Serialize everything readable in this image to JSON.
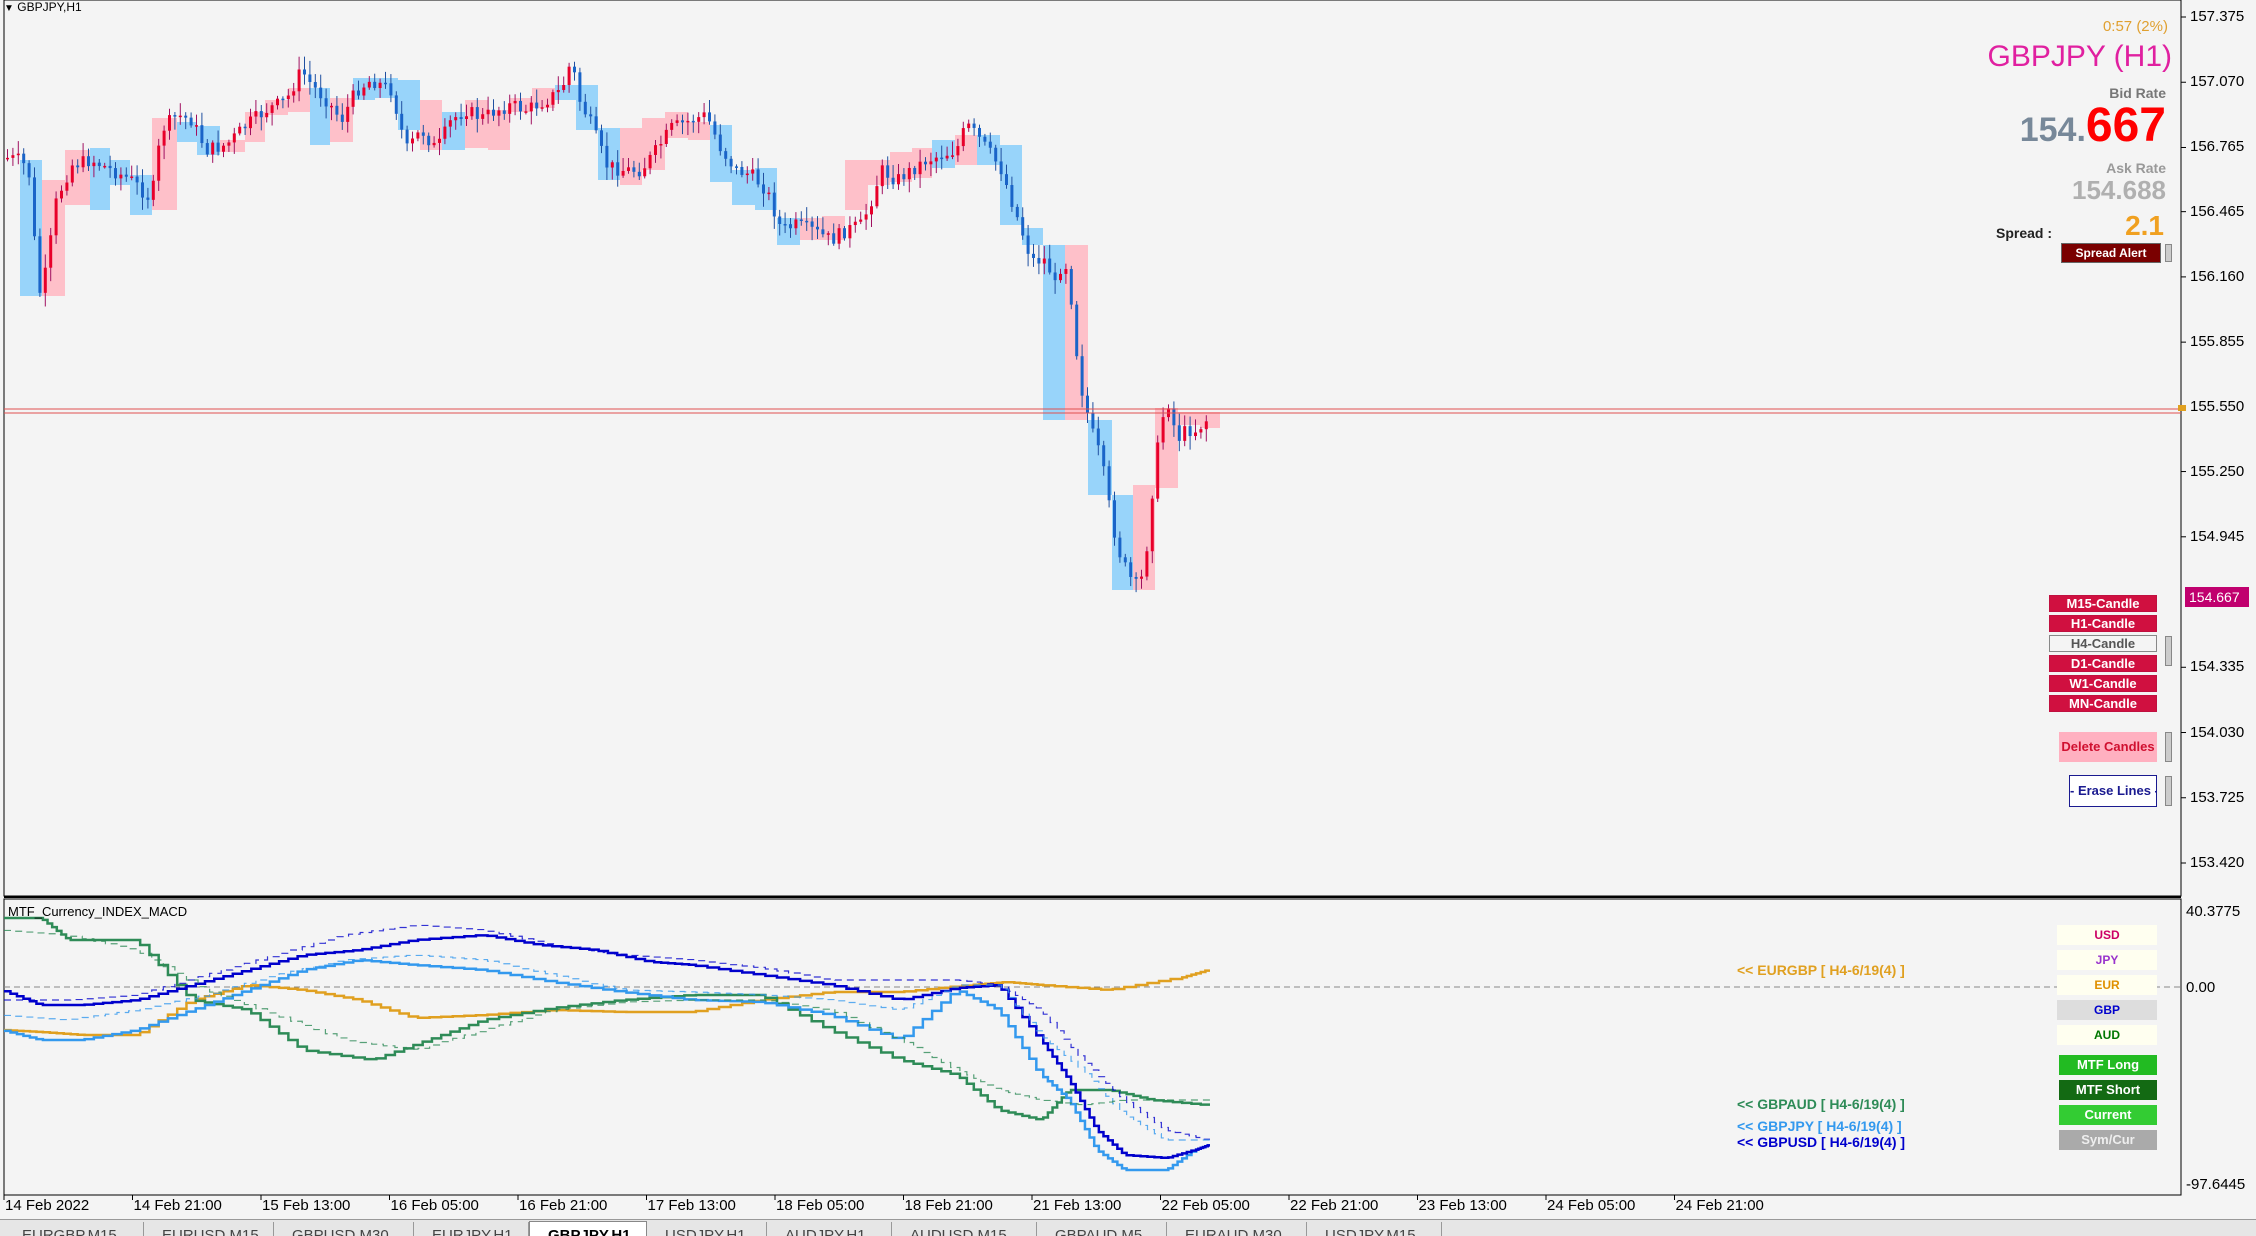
{
  "window": {
    "title": "GBPJPY,H1"
  },
  "info_panel": {
    "timer": "0:57 (2%)",
    "symbol_title": "GBPJPY (H1)",
    "bid_label": "Bid Rate",
    "bid_big": "154.",
    "bid_small": "667",
    "ask_label": "Ask Rate",
    "ask_value": "154.688",
    "spread_label": "Spread  :",
    "spread_value": "2.1",
    "spread_alert_button": "Spread Alert"
  },
  "price_axis": {
    "labels": [
      "157.375",
      "157.070",
      "156.765",
      "156.465",
      "156.160",
      "155.855",
      "155.550",
      "155.250",
      "154.945",
      "154.335",
      "154.030",
      "153.725",
      "153.420"
    ],
    "current_price_tag": "154.667"
  },
  "candle_buttons": [
    "M15-Candle",
    "H1-Candle",
    "H4-Candle",
    "D1-Candle",
    "W1-Candle",
    "MN-Candle"
  ],
  "action_buttons": {
    "delete_candles": "Delete Candles",
    "erase_lines": "- Erase Lines -"
  },
  "indicator": {
    "name": "MTF_Currency_INDEX_MACD",
    "axis_top": "40.3775",
    "axis_zero": "0.00",
    "axis_bottom": "-97.6445",
    "line_labels": [
      {
        "key": "eurgbp",
        "text": "<< EURGBP [ H4-6/19(4) ]",
        "color": "#e0a020"
      },
      {
        "key": "gbpaud",
        "text": "<< GBPAUD [ H4-6/19(4) ]",
        "color": "#2e8b57"
      },
      {
        "key": "gbpjpy",
        "text": "<< GBPJPY [ H4-6/19(4) ]",
        "color": "#3399ee"
      },
      {
        "key": "gbpusd",
        "text": "<< GBPUSD [ H4-6/19(4) ]",
        "color": "#0000cc"
      }
    ],
    "currency_buttons": [
      {
        "label": "USD",
        "color": "#cc0066"
      },
      {
        "label": "JPY",
        "color": "#9933cc"
      },
      {
        "label": "EUR",
        "color": "#e09000"
      },
      {
        "label": "GBP",
        "color": "#0000cc"
      },
      {
        "label": "AUD",
        "color": "#007700"
      }
    ],
    "mode_buttons": [
      "MTF Long",
      "MTF Short",
      "Current",
      "Sym/Cur"
    ]
  },
  "time_axis": [
    "14 Feb 2022",
    "14 Feb 21:00",
    "15 Feb 13:00",
    "16 Feb 05:00",
    "16 Feb 21:00",
    "17 Feb 13:00",
    "18 Feb 05:00",
    "18 Feb 21:00",
    "21 Feb 13:00",
    "22 Feb 05:00",
    "22 Feb 21:00",
    "23 Feb 13:00",
    "24 Feb 05:00",
    "24 Feb 21:00"
  ],
  "tabs": [
    "EURGBP,M15",
    "EURUSD,M15",
    "GBPUSD,M30",
    "EURJPY,H1",
    "GBPJPY,H1",
    "USDJPY,H1",
    "AUDJPY,H1",
    "AUDUSD,M15",
    "GBPAUD,M5",
    "EURAUD,M30",
    "USDJPY,M15"
  ],
  "active_tab": "GBPJPY,H1",
  "colors": {
    "bull_candle": "#e8002a",
    "bear_candle": "#1a64c8",
    "bull_box": "#ffb6c1",
    "bear_box": "#87cefa",
    "price_line": "#e05050"
  }
}
